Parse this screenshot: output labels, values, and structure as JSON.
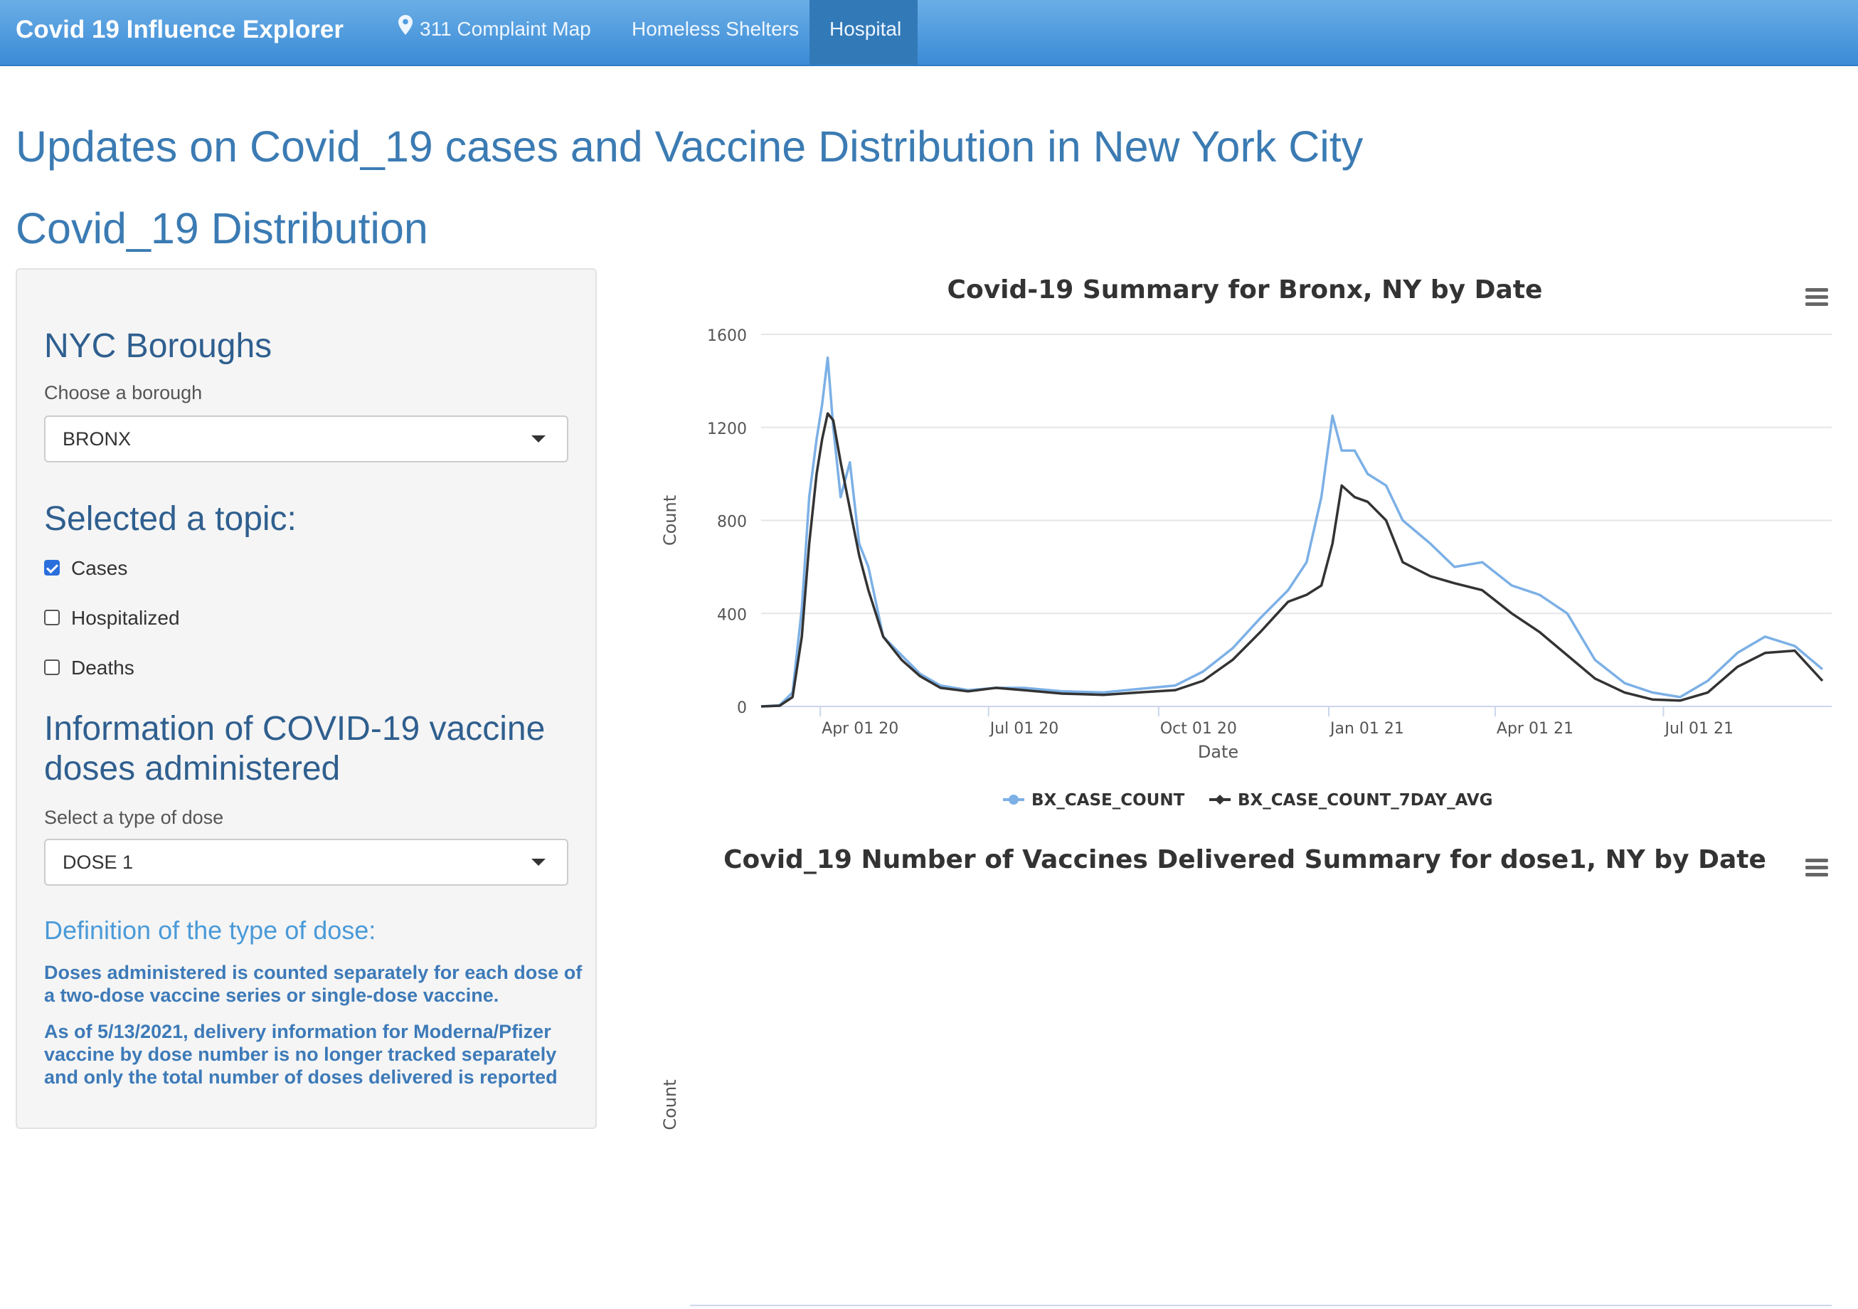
{
  "nav": {
    "brand": "Covid 19 Influence Explorer",
    "items": [
      {
        "label": "311 Complaint Map",
        "icon": "map-pin-icon",
        "active": false
      },
      {
        "label": "Homeless Shelters",
        "active": false
      },
      {
        "label": "Hospital",
        "active": true
      }
    ]
  },
  "page": {
    "title": "Updates on Covid_19 cases and Vaccine Distribution in New York City",
    "section": "Covid_19 Distribution"
  },
  "sidebar": {
    "boroughs_heading": "NYC Boroughs",
    "borough_label": "Choose a borough",
    "borough_value": "BRONX",
    "topic_heading": "Selected a topic:",
    "topics": [
      {
        "label": "Cases",
        "checked": true
      },
      {
        "label": "Hospitalized",
        "checked": false
      },
      {
        "label": "Deaths",
        "checked": false
      }
    ],
    "vaccine_heading": "Information of COVID-19 vaccine doses administered",
    "dose_label": "Select a type of dose",
    "dose_value": "DOSE 1",
    "definition_title": "Definition of the type of dose:",
    "definition_p1": "Doses administered is counted separately for each dose of a two-dose vaccine series or single-dose vaccine.",
    "definition_p2": "As of 5/13/2021, delivery information for Moderna/Pfizer vaccine by dose number is no longer tracked separately and only the total number of doses delivered is reported"
  },
  "colors": {
    "series_case": "#7cb0e6",
    "series_avg": "#333333",
    "title_blue": "#3b7bb3"
  },
  "chart_data": [
    {
      "type": "line",
      "title": "Covid-19 Summary for Bronx, NY by Date",
      "xlabel": "Date",
      "ylabel": "Count",
      "ylim": [
        0,
        1600
      ],
      "yticks": [
        0,
        400,
        800,
        1200,
        1600
      ],
      "xticks": [
        "Apr 01 20",
        "Jul 01 20",
        "Oct 01 20",
        "Jan 01 21",
        "Apr 01 21",
        "Jul 01 21"
      ],
      "x_range": [
        "2020-02-29",
        "2021-09-30"
      ],
      "grid": true,
      "legend": "bottom-center",
      "series": [
        {
          "name": "BX_CASE_COUNT",
          "x": [
            "2020-02-29",
            "2020-03-10",
            "2020-03-17",
            "2020-03-22",
            "2020-03-26",
            "2020-03-30",
            "2020-04-02",
            "2020-04-05",
            "2020-04-08",
            "2020-04-12",
            "2020-04-17",
            "2020-04-22",
            "2020-04-27",
            "2020-05-05",
            "2020-05-15",
            "2020-05-25",
            "2020-06-05",
            "2020-06-20",
            "2020-07-05",
            "2020-07-20",
            "2020-08-10",
            "2020-09-01",
            "2020-09-20",
            "2020-10-10",
            "2020-10-25",
            "2020-11-10",
            "2020-11-25",
            "2020-12-10",
            "2020-12-20",
            "2020-12-28",
            "2021-01-03",
            "2021-01-08",
            "2021-01-15",
            "2021-01-22",
            "2021-02-01",
            "2021-02-10",
            "2021-02-25",
            "2021-03-10",
            "2021-03-25",
            "2021-04-10",
            "2021-04-25",
            "2021-05-10",
            "2021-05-25",
            "2021-06-10",
            "2021-06-25",
            "2021-07-10",
            "2021-07-25",
            "2021-08-10",
            "2021-08-25",
            "2021-09-10",
            "2021-09-25"
          ],
          "values": [
            0,
            5,
            60,
            420,
            900,
            1150,
            1300,
            1500,
            1200,
            900,
            1050,
            700,
            600,
            300,
            220,
            140,
            90,
            70,
            80,
            80,
            65,
            60,
            75,
            90,
            150,
            250,
            380,
            500,
            620,
            900,
            1250,
            1100,
            1100,
            1000,
            950,
            800,
            700,
            600,
            620,
            520,
            480,
            400,
            200,
            100,
            60,
            40,
            110,
            230,
            300,
            260,
            160
          ]
        },
        {
          "name": "BX_CASE_COUNT_7DAY_AVG",
          "x": [
            "2020-02-29",
            "2020-03-10",
            "2020-03-17",
            "2020-03-22",
            "2020-03-26",
            "2020-03-30",
            "2020-04-02",
            "2020-04-05",
            "2020-04-08",
            "2020-04-12",
            "2020-04-17",
            "2020-04-22",
            "2020-04-27",
            "2020-05-05",
            "2020-05-15",
            "2020-05-25",
            "2020-06-05",
            "2020-06-20",
            "2020-07-05",
            "2020-07-20",
            "2020-08-10",
            "2020-09-01",
            "2020-09-20",
            "2020-10-10",
            "2020-10-25",
            "2020-11-10",
            "2020-11-25",
            "2020-12-10",
            "2020-12-20",
            "2020-12-28",
            "2021-01-03",
            "2021-01-08",
            "2021-01-15",
            "2021-01-22",
            "2021-02-01",
            "2021-02-10",
            "2021-02-25",
            "2021-03-10",
            "2021-03-25",
            "2021-04-10",
            "2021-04-25",
            "2021-05-10",
            "2021-05-25",
            "2021-06-10",
            "2021-06-25",
            "2021-07-10",
            "2021-07-25",
            "2021-08-10",
            "2021-08-25",
            "2021-09-10",
            "2021-09-25"
          ],
          "values": [
            0,
            3,
            40,
            300,
            700,
            1000,
            1150,
            1260,
            1230,
            1050,
            850,
            650,
            500,
            300,
            200,
            130,
            80,
            65,
            80,
            70,
            55,
            50,
            60,
            70,
            110,
            200,
            320,
            450,
            480,
            520,
            700,
            950,
            900,
            880,
            800,
            620,
            560,
            530,
            500,
            400,
            320,
            220,
            120,
            60,
            30,
            25,
            60,
            170,
            230,
            240,
            110
          ]
        }
      ]
    },
    {
      "type": "line",
      "title": "Covid_19 Number of Vaccines Delivered Summary for dose1, NY by Date",
      "ylabel": "Count",
      "series": []
    }
  ]
}
